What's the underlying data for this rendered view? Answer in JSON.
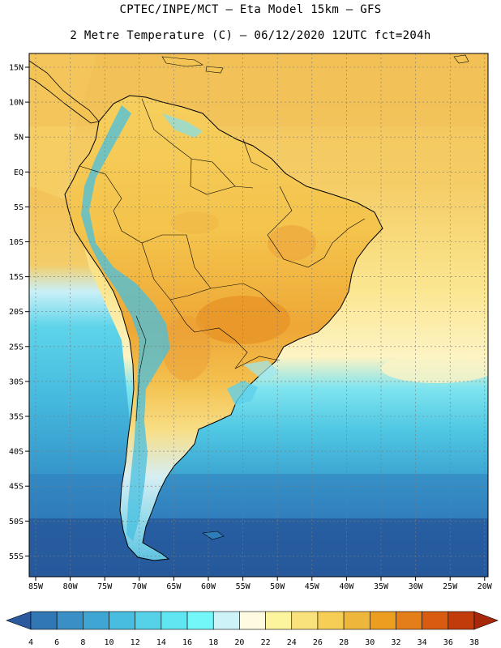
{
  "header": {
    "title_line1": "CPTEC/INPE/MCT –  Eta Model 15km – GFS",
    "title_line2": "2 Metre Temperature (C) – 06/12/2020 12UTC fct=204h"
  },
  "map": {
    "lat_labels": [
      "15N",
      "10N",
      "5N",
      "EQ",
      "5S",
      "10S",
      "15S",
      "20S",
      "25S",
      "30S",
      "35S",
      "40S",
      "45S",
      "50S",
      "55S"
    ],
    "lon_labels": [
      "85W",
      "80W",
      "75W",
      "70W",
      "65W",
      "60W",
      "55W",
      "50W",
      "45W",
      "40W",
      "35W",
      "30W",
      "25W",
      "20W"
    ],
    "colors": {
      "ocean_warm": "#f4c55c",
      "ocean_mid": "#fbe38a",
      "land_base": "#f5c14a",
      "land_hot": "#e89a25",
      "andes_cool": "#4cc3e0",
      "south_cold": "#2f7fbf",
      "south_coldest": "#24579b"
    }
  },
  "colorbar": {
    "labels": [
      "4",
      "6",
      "8",
      "10",
      "12",
      "14",
      "16",
      "18",
      "20",
      "22",
      "24",
      "26",
      "28",
      "30",
      "32",
      "34",
      "36",
      "38"
    ],
    "colors": [
      "#2d5a9e",
      "#3277b5",
      "#3a8fc6",
      "#3fa6d4",
      "#49bde0",
      "#55d1e8",
      "#5fe6f1",
      "#74f7f9",
      "#cdf3f8",
      "#fefbe0",
      "#fdf59e",
      "#f9e27c",
      "#f6cd55",
      "#efb63c",
      "#eb9e20",
      "#e47e18",
      "#d95b10",
      "#c13b0b",
      "#a7280a"
    ]
  }
}
